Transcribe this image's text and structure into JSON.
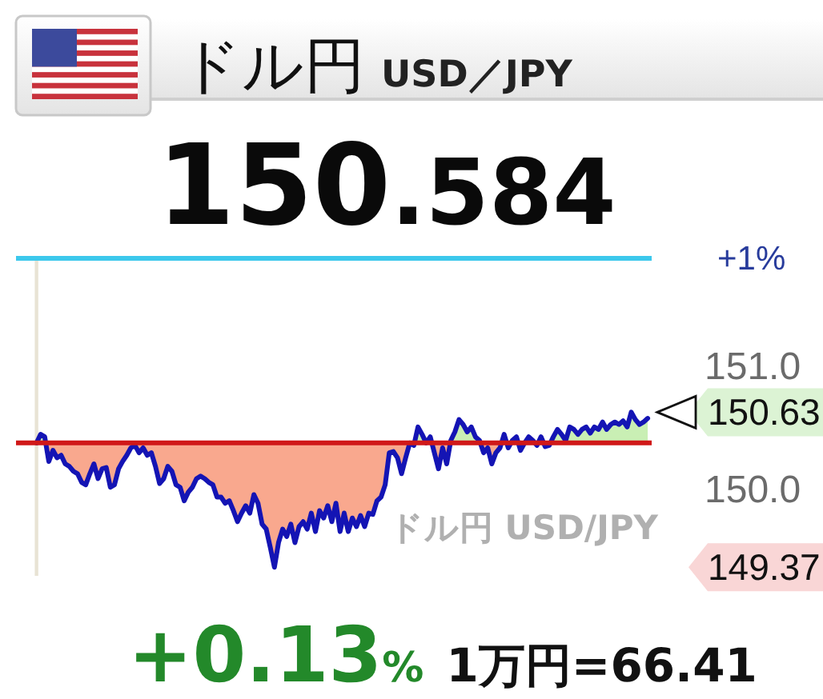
{
  "chart_data": {
    "type": "area",
    "title": "ドル円",
    "subtitle": "USD／JPY",
    "annotations": [
      "150.584",
      "+0.13%",
      "1万円=66.41",
      "ドル円 USD/JPY",
      "+1%",
      "150.63",
      "149.37"
    ],
    "color": "#1414b4",
    "categories": [
      null,
      null,
      null,
      null,
      null,
      null,
      null,
      null,
      null,
      null,
      null,
      null,
      null,
      null,
      null,
      null,
      null,
      null,
      null,
      null,
      null,
      null,
      null,
      null,
      null,
      null,
      null,
      null,
      null,
      null,
      null,
      null,
      null,
      null,
      null,
      null,
      null,
      null,
      null,
      null,
      null,
      null,
      null,
      null,
      null,
      null,
      null,
      null,
      null,
      null,
      null,
      null,
      null,
      null,
      null,
      null,
      null,
      null,
      null,
      null,
      null,
      null,
      null,
      null,
      null,
      null,
      null,
      null,
      null,
      null,
      null,
      null,
      null,
      null,
      null,
      null,
      null,
      null,
      null,
      null,
      null,
      null,
      null,
      null,
      null,
      null,
      null,
      null,
      null,
      null,
      null,
      null,
      null,
      null,
      null,
      null,
      null,
      null,
      null,
      null,
      null,
      null,
      null,
      null,
      null,
      null,
      null,
      null,
      null,
      null,
      null,
      null,
      null,
      null,
      null,
      null,
      null,
      null,
      null,
      null,
      null,
      null,
      null,
      null,
      null,
      null,
      null,
      null,
      null,
      null,
      null,
      null,
      null,
      null,
      null,
      null,
      null,
      null,
      null,
      null,
      null,
      null,
      null,
      null,
      null,
      null,
      null,
      null,
      null,
      null
    ],
    "values": [
      150.38,
      150.45,
      150.43,
      150.23,
      150.32,
      150.26,
      150.28,
      150.21,
      150.19,
      150.15,
      150.13,
      150.06,
      150.04,
      150.13,
      150.21,
      150.09,
      150.17,
      150.18,
      150.02,
      150.04,
      150.17,
      150.23,
      150.28,
      150.34,
      150.36,
      150.3,
      150.34,
      150.28,
      150.3,
      150.19,
      150.05,
      150.09,
      150.19,
      150.15,
      150.04,
      150.02,
      149.91,
      149.98,
      150.02,
      150.09,
      150.11,
      150.09,
      150.06,
      150.04,
      149.94,
      149.94,
      149.89,
      149.91,
      149.83,
      149.74,
      149.81,
      149.87,
      149.81,
      149.96,
      149.89,
      149.72,
      149.68,
      149.53,
      149.37,
      149.57,
      149.68,
      149.62,
      149.72,
      149.57,
      149.7,
      149.74,
      149.68,
      149.81,
      149.66,
      149.83,
      149.77,
      149.87,
      149.74,
      149.89,
      149.66,
      149.81,
      149.66,
      149.77,
      149.7,
      149.79,
      149.7,
      149.81,
      149.8,
      149.91,
      149.94,
      150.04,
      150.3,
      150.31,
      150.26,
      150.13,
      150.26,
      150.38,
      150.36,
      150.51,
      150.45,
      150.38,
      150.43,
      150.3,
      150.17,
      150.34,
      150.21,
      150.4,
      150.47,
      150.57,
      150.53,
      150.47,
      150.51,
      150.43,
      150.4,
      150.3,
      150.34,
      150.21,
      150.3,
      150.34,
      150.45,
      150.34,
      150.4,
      150.43,
      150.32,
      150.38,
      150.43,
      150.4,
      150.36,
      150.43,
      150.35,
      150.36,
      150.43,
      150.49,
      150.45,
      150.4,
      150.51,
      150.49,
      150.45,
      150.49,
      150.51,
      150.46,
      150.51,
      150.49,
      150.55,
      150.49,
      150.53,
      150.55,
      150.53,
      150.56,
      150.51,
      150.63,
      150.57,
      150.53,
      150.55,
      150.58
    ],
    "ylim": [
      149.3,
      151.9
    ],
    "yticks": [
      {
        "value": 151,
        "label": "151.0"
      },
      {
        "value": 150,
        "label": "150.0"
      }
    ],
    "tick_labels": "y",
    "ref_lines": [
      {
        "axis": "y",
        "value": 151.88,
        "color": "#3cc8ec"
      },
      {
        "axis": "y",
        "value": 150.38,
        "color": "#d01818"
      }
    ]
  }
}
